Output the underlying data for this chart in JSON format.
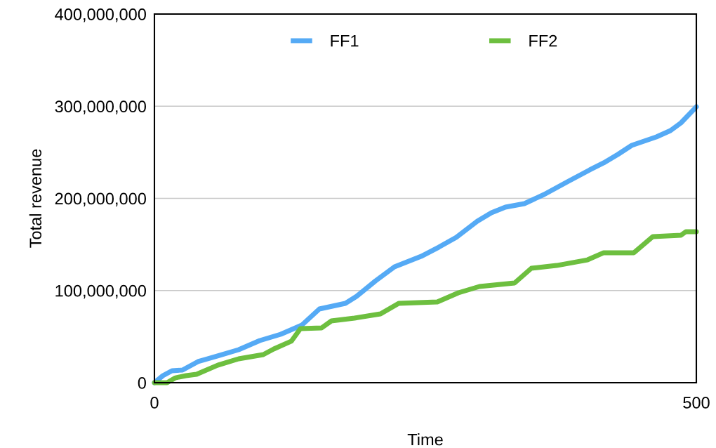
{
  "chart_data": {
    "type": "line",
    "xlabel": "Time",
    "ylabel": "Total revenue",
    "xlim": [
      0,
      500
    ],
    "xticks": [
      0,
      500
    ],
    "ylim": [
      0,
      400000000
    ],
    "yticks": [
      {
        "value": 0,
        "label": "0"
      },
      {
        "value": 100000000,
        "label": "100,000,000"
      },
      {
        "value": 200000000,
        "label": "200,000,000"
      },
      {
        "value": 300000000,
        "label": "300,000,000"
      },
      {
        "value": 400000000,
        "label": "400,000,000"
      }
    ],
    "grid": "y",
    "legend": "top",
    "marker": "none",
    "line_style": "solid",
    "series": [
      {
        "name": "FF1",
        "color": "#55aaf5",
        "x": [
          0,
          7.8,
          16.2,
          25.9,
          40.2,
          58.3,
          77.7,
          97.2,
          116.6,
          136,
          152.2,
          176.2,
          186.5,
          204,
          221.5,
          246.1,
          262.3,
          278.5,
          297.9,
          310.9,
          323.8,
          341.3,
          359.5,
          382.1,
          401.6,
          414.5,
          427.5,
          440.4,
          463.1,
          476.1,
          485.8,
          500
        ],
        "values": [
          0,
          7600000,
          13000000,
          13700000,
          22900000,
          29000000,
          35800000,
          45700000,
          52600000,
          62500000,
          80000000,
          86100000,
          93700000,
          110500000,
          125700000,
          137100000,
          147000000,
          157700000,
          175200000,
          184400000,
          190500000,
          194300000,
          204200000,
          218700000,
          230900000,
          238500000,
          247600000,
          257500000,
          266700000,
          273500000,
          281900000,
          299400000
        ]
      },
      {
        "name": "FF2",
        "color": "#6dbf3f",
        "x": [
          0,
          11.7,
          19.4,
          29.1,
          38.9,
          58.3,
          77.7,
          100.4,
          110.1,
          126.3,
          134.7,
          154.2,
          163.2,
          184.6,
          208.6,
          225.4,
          261,
          280.4,
          299.9,
          332.3,
          347.8,
          371.1,
          399.6,
          414.5,
          442.4,
          459.9,
          485.8,
          490.3,
          500
        ],
        "values": [
          0,
          0,
          5300000,
          7600000,
          9100000,
          19000000,
          25900000,
          30500000,
          36600000,
          45000000,
          58700000,
          59400000,
          67000000,
          70100000,
          74700000,
          86100000,
          87600000,
          97500000,
          104400000,
          108200000,
          124200000,
          127200000,
          133300000,
          141000000,
          141000000,
          158500000,
          160000000,
          163800000,
          163800000
        ]
      }
    ]
  }
}
